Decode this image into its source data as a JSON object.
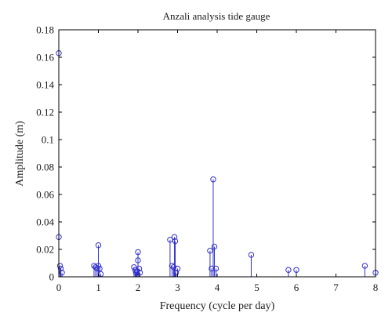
{
  "colors": {
    "stem": "#3333cc",
    "axis": "#000000",
    "background": "#ffffff"
  },
  "chart_data": {
    "type": "stem",
    "title": "Anzali analysis tide gauge",
    "xlabel": "Frequency (cycle per day)",
    "ylabel": "Amplitude (m)",
    "xlim": [
      0,
      8
    ],
    "ylim": [
      0,
      0.18
    ],
    "xticks": [
      0,
      1,
      2,
      3,
      4,
      5,
      6,
      7,
      8
    ],
    "yticks": [
      0,
      0.02,
      0.04,
      0.06,
      0.08,
      0.1,
      0.12,
      0.14,
      0.16,
      0.18
    ],
    "xtick_labels": [
      "0",
      "1",
      "2",
      "3",
      "4",
      "5",
      "6",
      "7",
      "8"
    ],
    "ytick_labels": [
      "0",
      "0.02",
      "0.04",
      "0.06",
      "0.08",
      "0.1",
      "0.12",
      "0.14",
      "0.16",
      "0.18"
    ],
    "grid": false,
    "points": [
      {
        "x": 0.0,
        "y": 0.163
      },
      {
        "x": 0.0,
        "y": 0.029
      },
      {
        "x": 0.03,
        "y": 0.008
      },
      {
        "x": 0.05,
        "y": 0.006
      },
      {
        "x": 0.08,
        "y": 0.003
      },
      {
        "x": 0.89,
        "y": 0.008
      },
      {
        "x": 0.93,
        "y": 0.007
      },
      {
        "x": 0.97,
        "y": 0.006
      },
      {
        "x": 1.0,
        "y": 0.023
      },
      {
        "x": 1.0,
        "y": 0.008
      },
      {
        "x": 1.03,
        "y": 0.006
      },
      {
        "x": 1.06,
        "y": 0.002
      },
      {
        "x": 1.9,
        "y": 0.007
      },
      {
        "x": 1.93,
        "y": 0.005
      },
      {
        "x": 1.95,
        "y": 0.003
      },
      {
        "x": 1.97,
        "y": 0.004
      },
      {
        "x": 2.0,
        "y": 0.018
      },
      {
        "x": 2.0,
        "y": 0.012
      },
      {
        "x": 2.03,
        "y": 0.006
      },
      {
        "x": 2.05,
        "y": 0.003
      },
      {
        "x": 2.81,
        "y": 0.027
      },
      {
        "x": 2.86,
        "y": 0.008
      },
      {
        "x": 2.9,
        "y": 0.007
      },
      {
        "x": 2.92,
        "y": 0.029
      },
      {
        "x": 2.94,
        "y": 0.026
      },
      {
        "x": 2.96,
        "y": 0.003
      },
      {
        "x": 3.0,
        "y": 0.006
      },
      {
        "x": 3.82,
        "y": 0.019
      },
      {
        "x": 3.86,
        "y": 0.006
      },
      {
        "x": 3.9,
        "y": 0.071
      },
      {
        "x": 3.93,
        "y": 0.022
      },
      {
        "x": 3.97,
        "y": 0.006
      },
      {
        "x": 4.86,
        "y": 0.016
      },
      {
        "x": 5.8,
        "y": 0.005
      },
      {
        "x": 6.0,
        "y": 0.005
      },
      {
        "x": 7.73,
        "y": 0.008
      },
      {
        "x": 8.0,
        "y": 0.003
      }
    ]
  }
}
